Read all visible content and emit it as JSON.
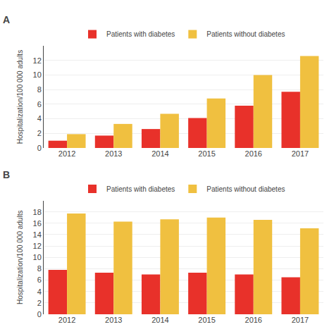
{
  "chart_data": [
    {
      "type": "bar",
      "title": "A",
      "categories": [
        "2012",
        "2013",
        "2014",
        "2015",
        "2016",
        "2017"
      ],
      "series": [
        {
          "name": "Patients with diabetes",
          "color": "#e8312a",
          "values": [
            1.0,
            1.7,
            2.6,
            4.1,
            5.8,
            7.7
          ]
        },
        {
          "name": "Patients without diabetes",
          "color": "#f0c040",
          "values": [
            1.9,
            3.3,
            4.7,
            6.8,
            10.0,
            12.6
          ]
        }
      ],
      "y_label": "Hospitalization/100 000 adults",
      "ylim": [
        0,
        14
      ],
      "yticks": [
        0,
        2,
        4,
        6,
        8,
        10,
        12
      ],
      "grid": true,
      "legend": "upper center"
    },
    {
      "type": "bar",
      "title": "B",
      "categories": [
        "2012",
        "2013",
        "2014",
        "2015",
        "2016",
        "2017"
      ],
      "series": [
        {
          "name": "Patients with diabetes",
          "color": "#e8312a",
          "values": [
            7.8,
            7.3,
            7.0,
            7.3,
            7.0,
            6.5
          ]
        },
        {
          "name": "Patients without diabetes",
          "color": "#f0c040",
          "values": [
            17.7,
            16.3,
            16.7,
            17.0,
            16.6,
            15.1
          ]
        }
      ],
      "y_label": "Hospitalization/100 000 adults",
      "ylim": [
        0,
        20
      ],
      "yticks": [
        0,
        2,
        4,
        6,
        8,
        10,
        12,
        14,
        16,
        18
      ],
      "grid": true,
      "legend": "upper center"
    }
  ]
}
